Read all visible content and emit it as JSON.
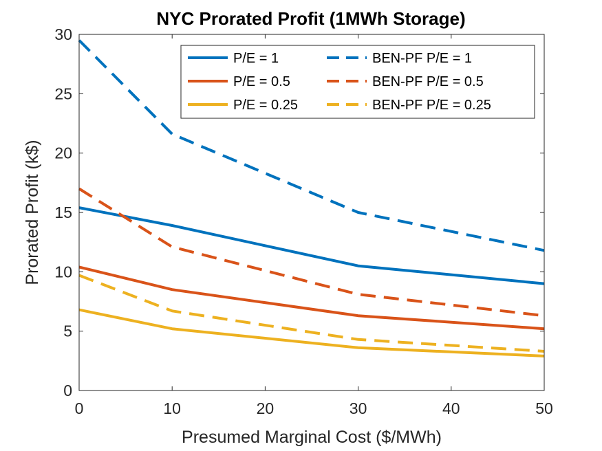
{
  "chart_data": {
    "type": "line",
    "title": "NYC Prorated Profit (1MWh Storage)",
    "xlabel": "Presumed Marginal Cost ($/MWh)",
    "ylabel": "Prorated Profit (k$)",
    "xlim": [
      0,
      50
    ],
    "ylim": [
      0,
      30
    ],
    "xticks": [
      0,
      10,
      20,
      30,
      40,
      50
    ],
    "yticks": [
      0,
      5,
      10,
      15,
      20,
      25,
      30
    ],
    "grid": false,
    "legend_position": "top-right",
    "x": [
      0,
      10,
      30,
      50
    ],
    "series": [
      {
        "name": "P/E = 1",
        "color": "#0072BD",
        "style": "solid",
        "values": [
          15.4,
          13.9,
          10.5,
          9.0
        ]
      },
      {
        "name": "P/E = 0.5",
        "color": "#D95319",
        "style": "solid",
        "values": [
          10.4,
          8.5,
          6.3,
          5.2
        ]
      },
      {
        "name": "P/E = 0.25",
        "color": "#EDB120",
        "style": "solid",
        "values": [
          6.8,
          5.2,
          3.6,
          2.9
        ]
      },
      {
        "name": "BEN-PF P/E = 1",
        "color": "#0072BD",
        "style": "dashed",
        "values": [
          29.5,
          21.6,
          15.0,
          11.8
        ]
      },
      {
        "name": "BEN-PF P/E = 0.5",
        "color": "#D95319",
        "style": "dashed",
        "values": [
          17.0,
          12.1,
          8.1,
          6.3
        ]
      },
      {
        "name": "BEN-PF P/E = 0.25",
        "color": "#EDB120",
        "style": "dashed",
        "values": [
          9.7,
          6.7,
          4.3,
          3.3
        ]
      }
    ]
  }
}
